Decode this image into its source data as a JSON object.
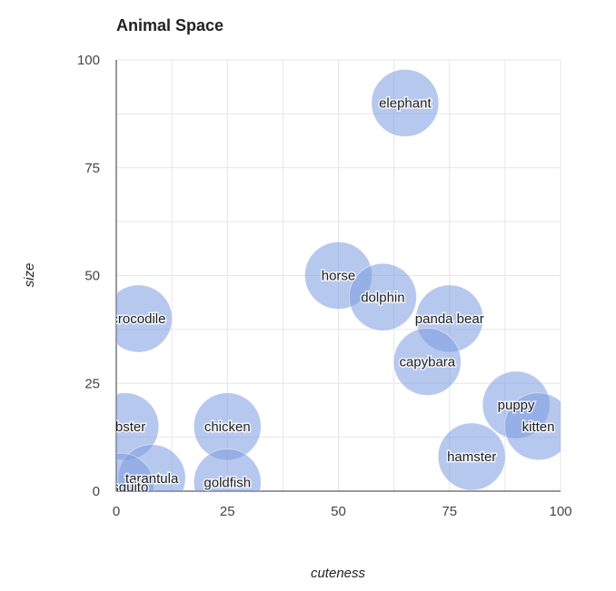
{
  "chart_data": {
    "type": "scatter",
    "title": "Animal Space",
    "xlabel": "cuteness",
    "ylabel": "size",
    "xlim": [
      0,
      100
    ],
    "ylim": [
      0,
      100
    ],
    "xticks": [
      "0",
      "25",
      "50",
      "75",
      "100"
    ],
    "yticks": [
      "0",
      "25",
      "50",
      "75",
      "100"
    ],
    "grid": true,
    "bubble_color": "#7b9be0",
    "points": [
      {
        "label": "elephant",
        "x": 65,
        "y": 90
      },
      {
        "label": "horse",
        "x": 50,
        "y": 50
      },
      {
        "label": "dolphin",
        "x": 60,
        "y": 45
      },
      {
        "label": "panda bear",
        "x": 75,
        "y": 40
      },
      {
        "label": "capybara",
        "x": 70,
        "y": 30
      },
      {
        "label": "crocodile",
        "x": 5,
        "y": 40
      },
      {
        "label": "puppy",
        "x": 90,
        "y": 20
      },
      {
        "label": "kitten",
        "x": 95,
        "y": 15
      },
      {
        "label": "hamster",
        "x": 80,
        "y": 8
      },
      {
        "label": "lobster",
        "x": 2,
        "y": 15
      },
      {
        "label": "chicken",
        "x": 25,
        "y": 15
      },
      {
        "label": "goldfish",
        "x": 25,
        "y": 2
      },
      {
        "label": "tarantula",
        "x": 8,
        "y": 3
      },
      {
        "label": "mosquito",
        "x": 1,
        "y": 1
      }
    ]
  }
}
